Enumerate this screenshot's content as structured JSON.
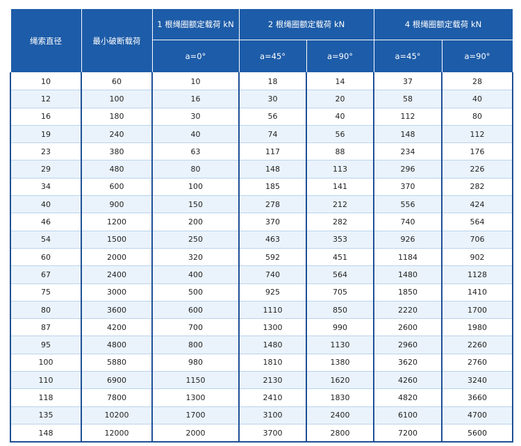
{
  "table": {
    "header": {
      "diameter": "绳索直径",
      "min_break": "最小破断载荷",
      "group1": "1 根绳圈额定载荷 kN",
      "group2": "2 根绳圈额定载荷 kN",
      "group4": "4 根绳圈额定载荷 kN",
      "angles": [
        "a=0°",
        "a=45°",
        "a=90°",
        "a=45°",
        "a=90°"
      ]
    },
    "rows": [
      [
        10,
        60,
        10,
        18,
        14,
        37,
        28
      ],
      [
        12,
        100,
        16,
        30,
        20,
        58,
        40
      ],
      [
        16,
        180,
        30,
        56,
        40,
        112,
        80
      ],
      [
        19,
        240,
        40,
        74,
        56,
        148,
        112
      ],
      [
        23,
        380,
        63,
        117,
        88,
        234,
        176
      ],
      [
        29,
        480,
        80,
        148,
        113,
        296,
        226
      ],
      [
        34,
        600,
        100,
        185,
        141,
        370,
        282
      ],
      [
        40,
        900,
        150,
        278,
        212,
        556,
        424
      ],
      [
        46,
        1200,
        200,
        370,
        282,
        740,
        564
      ],
      [
        54,
        1500,
        250,
        463,
        353,
        926,
        706
      ],
      [
        60,
        2000,
        320,
        592,
        451,
        1184,
        902
      ],
      [
        67,
        2400,
        400,
        740,
        564,
        1480,
        1128
      ],
      [
        75,
        3000,
        500,
        925,
        705,
        1850,
        1410
      ],
      [
        80,
        3600,
        600,
        1110,
        850,
        2220,
        1700
      ],
      [
        87,
        4200,
        700,
        1300,
        990,
        2600,
        1980
      ],
      [
        95,
        4800,
        800,
        1480,
        1130,
        2960,
        2260
      ],
      [
        100,
        5880,
        980,
        1810,
        1380,
        3620,
        2760
      ],
      [
        110,
        6900,
        1150,
        2130,
        1620,
        4260,
        3240
      ],
      [
        118,
        7800,
        1300,
        2410,
        1830,
        4820,
        3660
      ],
      [
        135,
        10200,
        1700,
        3100,
        2400,
        6100,
        4700
      ],
      [
        148,
        12000,
        2000,
        3700,
        2800,
        7200,
        5600
      ]
    ]
  }
}
